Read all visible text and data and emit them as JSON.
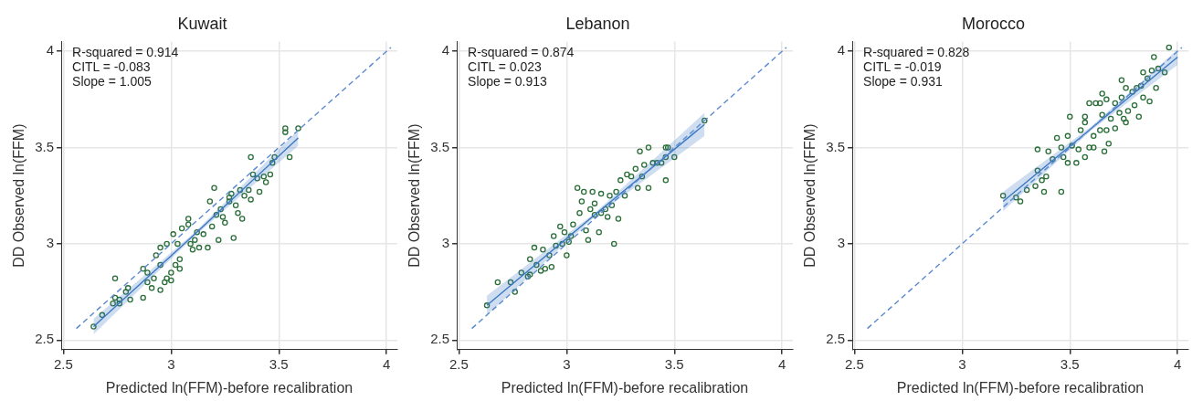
{
  "chart_data": [
    {
      "type": "scatter",
      "title": "Kuwait",
      "xlabel": "Predicted ln(FFM)-before recalibration",
      "ylabel": "DD Observed ln(FFM)",
      "xlim": [
        2.49,
        4.05
      ],
      "ylim": [
        2.45,
        4.05
      ],
      "xticks": [
        2.5,
        3,
        3.5,
        4
      ],
      "yticks": [
        2.5,
        3,
        3.5,
        4
      ],
      "grid": true,
      "legend": false,
      "annotations": [
        "R-squared = 0.914",
        "CITL = -0.083",
        "Slope = 1.005"
      ],
      "series": [
        {
          "type": "line",
          "color": "#5b8ad0",
          "line_style": "dashed",
          "marker": "none",
          "x": [
            2.56,
            4.02
          ],
          "values": [
            2.56,
            4.02
          ]
        },
        {
          "type": "line",
          "color": "#3c78c3",
          "line_style": "solid",
          "marker": "none",
          "x": [
            2.64,
            3.1,
            3.59
          ],
          "values": [
            2.57,
            3.04,
            3.55
          ],
          "lower": [
            2.53,
            3.03,
            3.51
          ],
          "upper": [
            2.61,
            3.05,
            3.59
          ]
        },
        {
          "type": "scatter",
          "color": "#2a6e38",
          "marker": "circle",
          "x": [
            2.64,
            2.68,
            2.73,
            2.74,
            2.74,
            2.76,
            2.76,
            2.79,
            2.8,
            2.81,
            2.87,
            2.87,
            2.89,
            2.89,
            2.91,
            2.92,
            2.93,
            2.95,
            2.95,
            2.95,
            2.97,
            2.98,
            3.0,
            3.0,
            3.02,
            3.01,
            2.98,
            3.03,
            3.04,
            3.04,
            3.05,
            3.08,
            3.08,
            3.09,
            3.1,
            3.11,
            3.12,
            3.13,
            3.15,
            3.17,
            3.18,
            3.19,
            3.2,
            3.21,
            3.22,
            3.23,
            3.24,
            3.25,
            3.27,
            3.27,
            3.28,
            3.29,
            3.3,
            3.31,
            3.32,
            3.33,
            3.34,
            3.36,
            3.37,
            3.37,
            3.38,
            3.4,
            3.41,
            3.43,
            3.44,
            3.46,
            3.47,
            3.48,
            3.53,
            3.53,
            3.55,
            3.59
          ],
          "values": [
            2.57,
            2.63,
            2.69,
            2.82,
            2.72,
            2.69,
            2.71,
            2.75,
            2.77,
            2.71,
            2.72,
            2.87,
            2.85,
            2.8,
            2.77,
            2.82,
            2.94,
            2.98,
            2.89,
            2.76,
            2.8,
            2.82,
            2.85,
            2.81,
            2.89,
            3.05,
            3.0,
            3.0,
            2.87,
            2.92,
            3.08,
            3.13,
            3.1,
            3.0,
            2.97,
            3.02,
            3.06,
            2.98,
            3.05,
            2.98,
            3.22,
            3.09,
            3.29,
            3.15,
            3.02,
            3.18,
            3.14,
            3.11,
            3.22,
            3.24,
            3.26,
            3.03,
            3.2,
            3.16,
            3.28,
            3.13,
            3.25,
            3.28,
            3.23,
            3.45,
            3.36,
            3.34,
            3.27,
            3.35,
            3.32,
            3.36,
            3.42,
            3.45,
            3.6,
            3.58,
            3.45,
            3.6
          ]
        }
      ]
    },
    {
      "type": "scatter",
      "title": "Lebanon",
      "xlabel": "Predicted ln(FFM)-before recalibration",
      "ylabel": "DD Observed ln(FFM)",
      "xlim": [
        2.49,
        4.05
      ],
      "ylim": [
        2.45,
        4.05
      ],
      "xticks": [
        2.5,
        3,
        3.5,
        4
      ],
      "yticks": [
        2.5,
        3,
        3.5,
        4
      ],
      "grid": true,
      "legend": false,
      "annotations": [
        "R-squared = 0.874",
        "CITL = 0.023",
        "Slope = 0.913"
      ],
      "series": [
        {
          "type": "line",
          "color": "#5b8ad0",
          "line_style": "dashed",
          "marker": "none",
          "x": [
            2.56,
            4.02
          ],
          "values": [
            2.56,
            4.02
          ]
        },
        {
          "type": "line",
          "color": "#3c78c3",
          "line_style": "solid",
          "marker": "none",
          "x": [
            2.63,
            3.13,
            3.64
          ],
          "values": [
            2.68,
            3.15,
            3.62
          ],
          "lower": [
            2.63,
            3.14,
            3.56
          ],
          "upper": [
            2.73,
            3.16,
            3.68
          ]
        },
        {
          "type": "scatter",
          "color": "#2a6e38",
          "marker": "circle",
          "x": [
            2.63,
            2.68,
            2.74,
            2.76,
            2.79,
            2.82,
            2.83,
            2.83,
            2.85,
            2.86,
            2.88,
            2.89,
            2.9,
            2.92,
            2.93,
            2.94,
            2.95,
            2.97,
            2.98,
            2.99,
            3.0,
            3.01,
            3.02,
            3.03,
            3.05,
            3.06,
            3.07,
            3.08,
            3.09,
            3.1,
            3.11,
            3.12,
            3.13,
            3.13,
            3.15,
            3.16,
            3.16,
            3.18,
            3.19,
            3.2,
            3.21,
            3.22,
            3.23,
            3.24,
            3.25,
            3.27,
            3.28,
            3.3,
            3.32,
            3.33,
            3.34,
            3.35,
            3.36,
            3.38,
            3.38,
            3.4,
            3.42,
            3.44,
            3.46,
            3.46,
            3.47,
            3.46,
            3.5,
            3.64
          ],
          "values": [
            2.68,
            2.8,
            2.8,
            2.75,
            2.85,
            2.83,
            2.84,
            2.92,
            2.98,
            2.89,
            2.86,
            2.97,
            2.87,
            2.94,
            2.88,
            3.04,
            2.99,
            3.09,
            3.0,
            3.06,
            2.94,
            3.01,
            3.04,
            3.1,
            3.29,
            3.16,
            3.22,
            3.27,
            3.07,
            3.02,
            3.18,
            3.27,
            3.21,
            3.15,
            3.06,
            3.26,
            3.16,
            3.18,
            3.14,
            3.25,
            3.2,
            3.0,
            3.27,
            3.13,
            3.33,
            3.25,
            3.36,
            3.35,
            3.39,
            3.29,
            3.48,
            3.35,
            3.41,
            3.5,
            3.29,
            3.42,
            3.42,
            3.42,
            3.33,
            3.5,
            3.5,
            3.45,
            3.45,
            3.64
          ]
        }
      ]
    },
    {
      "type": "scatter",
      "title": "Morocco",
      "xlabel": "Predicted ln(FFM)-before recalibration",
      "ylabel": "DD Observed ln(FFM)",
      "xlim": [
        2.49,
        4.05
      ],
      "ylim": [
        2.45,
        4.05
      ],
      "xticks": [
        2.5,
        3,
        3.5,
        4
      ],
      "yticks": [
        2.5,
        3,
        3.5,
        4
      ],
      "grid": true,
      "legend": false,
      "annotations": [
        "R-squared = 0.828",
        "CITL = -0.019",
        "Slope = 0.931"
      ],
      "series": [
        {
          "type": "line",
          "color": "#5b8ad0",
          "line_style": "dashed",
          "marker": "none",
          "x": [
            2.56,
            4.02
          ],
          "values": [
            2.56,
            4.02
          ]
        },
        {
          "type": "line",
          "color": "#3c78c3",
          "line_style": "solid",
          "marker": "none",
          "x": [
            3.19,
            3.6,
            4.0
          ],
          "values": [
            3.22,
            3.6,
            3.97
          ],
          "lower": [
            3.17,
            3.59,
            3.93
          ],
          "upper": [
            3.27,
            3.61,
            4.01
          ]
        },
        {
          "type": "scatter",
          "color": "#2a6e38",
          "marker": "circle",
          "x": [
            3.19,
            3.25,
            3.27,
            3.3,
            3.34,
            3.35,
            3.37,
            3.38,
            3.39,
            3.35,
            3.4,
            3.42,
            3.44,
            3.46,
            3.46,
            3.47,
            3.49,
            3.49,
            3.5,
            3.51,
            3.53,
            3.54,
            3.55,
            3.57,
            3.57,
            3.57,
            3.59,
            3.59,
            3.61,
            3.61,
            3.62,
            3.64,
            3.64,
            3.65,
            3.65,
            3.66,
            3.67,
            3.67,
            3.68,
            3.69,
            3.71,
            3.71,
            3.73,
            3.74,
            3.74,
            3.75,
            3.76,
            3.76,
            3.77,
            3.79,
            3.8,
            3.81,
            3.82,
            3.83,
            3.84,
            3.84,
            3.86,
            3.87,
            3.89,
            3.88,
            3.9,
            3.91,
            3.94,
            3.96
          ],
          "values": [
            3.25,
            3.24,
            3.22,
            3.28,
            3.3,
            3.38,
            3.33,
            3.27,
            3.35,
            3.49,
            3.48,
            3.44,
            3.55,
            3.27,
            3.5,
            3.45,
            3.56,
            3.42,
            3.66,
            3.51,
            3.42,
            3.49,
            3.59,
            3.63,
            3.45,
            3.66,
            3.73,
            3.5,
            3.56,
            3.5,
            3.73,
            3.73,
            3.59,
            3.78,
            3.67,
            3.48,
            3.75,
            3.59,
            3.52,
            3.65,
            3.73,
            3.6,
            3.68,
            3.76,
            3.85,
            3.65,
            3.63,
            3.81,
            3.69,
            3.79,
            3.72,
            3.81,
            3.66,
            3.82,
            3.76,
            3.89,
            3.86,
            3.74,
            3.97,
            3.9,
            3.81,
            3.91,
            3.89,
            4.02
          ]
        }
      ]
    }
  ]
}
